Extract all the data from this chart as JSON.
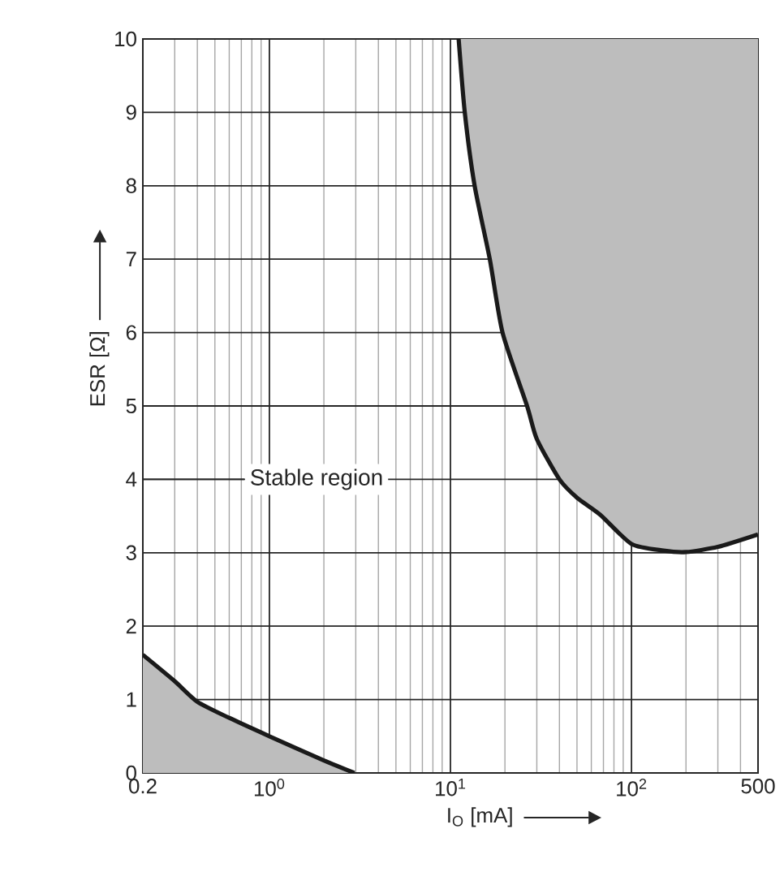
{
  "chart_data": {
    "type": "line",
    "xlabel": "I$_{O}$ [mA]",
    "ylabel": "ESR [Ω]",
    "log": "x",
    "grid": true,
    "xlim": [
      0.2,
      500
    ],
    "ylim": [
      0,
      10
    ],
    "xticks": [
      0.2,
      {
        "value": 1,
        "label": "10$^{0}$"
      },
      {
        "value": 10,
        "label": "10$^{1}$"
      },
      {
        "value": 100,
        "label": "10$^{2}$"
      },
      500
    ],
    "yticks": [
      0,
      1,
      2,
      3,
      4,
      5,
      6,
      7,
      8,
      9,
      10
    ],
    "annotations": [
      "Stable region"
    ],
    "series": [
      {
        "type": "area",
        "color": "#1a1a1a",
        "x": [
          0.2,
          0.3,
          0.4,
          0.6,
          1,
          2,
          2.95
        ],
        "values": [
          1.61,
          1.25,
          0.97,
          0.75,
          0.5,
          0.17,
          0
        ]
      },
      {
        "color": "#1a1a1a",
        "x": [
          11.1,
          12,
          13.6,
          16.5,
          19.4,
          26.5,
          30,
          40,
          50,
          67,
          100,
          150,
          200,
          300,
          500
        ],
        "values": [
          10,
          9,
          8,
          7,
          6,
          5,
          4.55,
          4,
          3.75,
          3.52,
          3.12,
          3.03,
          3.01,
          3.08,
          3.25
        ],
        "lower": [
          10,
          9,
          8,
          7,
          6,
          5,
          4.55,
          4,
          3.75,
          3.52,
          3.12,
          3.03,
          3.01,
          3.08,
          3.25
        ],
        "upper": [
          10,
          10,
          10,
          10,
          10,
          10,
          10,
          10,
          10,
          10,
          10,
          10,
          10,
          10,
          10
        ]
      }
    ]
  }
}
